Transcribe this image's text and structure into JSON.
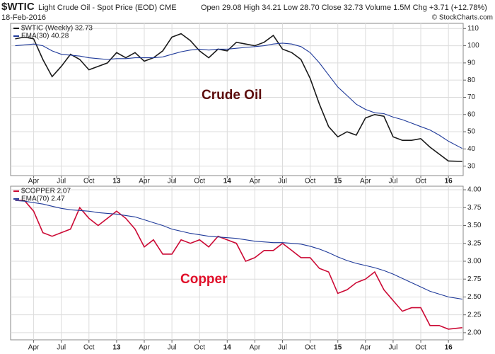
{
  "chart_data": [
    {
      "type": "line",
      "title": "$WTIC",
      "subtitle": "Light Crude Oil - Spot Price (EOD) CME",
      "date": "18-Feb-2016",
      "quote": "Open 29.08 High 34.21 Low 28.70 Close 32.73 Volume 1.5M Chg +3.71 (+12.78%)",
      "credit": "© StockCharts.com",
      "annotation": "Crude Oil",
      "annotation_color": "#5c0d0d",
      "legend": "upper left",
      "grid": true,
      "x": [
        1,
        2,
        3,
        4,
        5,
        6,
        7,
        8,
        9,
        10,
        11,
        12,
        13,
        14,
        15,
        16,
        17,
        18,
        19,
        20,
        21,
        22,
        23,
        24,
        25,
        26,
        27,
        28,
        29,
        30,
        31,
        32,
        33,
        34,
        35,
        36,
        37,
        38,
        39,
        40,
        41,
        42,
        43,
        44,
        45,
        46,
        47,
        48,
        49.5
      ],
      "xlim": [
        0.5,
        49.6
      ],
      "xticks": [
        {
          "value": 3,
          "label": "Apr"
        },
        {
          "value": 6,
          "label": "Jul"
        },
        {
          "value": 9,
          "label": "Oct"
        },
        {
          "value": 12,
          "label": "13"
        },
        {
          "value": 15,
          "label": "Apr"
        },
        {
          "value": 18,
          "label": "Jul"
        },
        {
          "value": 21,
          "label": "Oct"
        },
        {
          "value": 24,
          "label": "14"
        },
        {
          "value": 27,
          "label": "Apr"
        },
        {
          "value": 30,
          "label": "Jul"
        },
        {
          "value": 33,
          "label": "Oct"
        },
        {
          "value": 36,
          "label": "15"
        },
        {
          "value": 39,
          "label": "Apr"
        },
        {
          "value": 42,
          "label": "Jul"
        },
        {
          "value": 45,
          "label": "Oct"
        },
        {
          "value": 48,
          "label": "16"
        }
      ],
      "ylim": [
        24.5,
        113
      ],
      "yticks": [
        30,
        40,
        50,
        60,
        70,
        80,
        90,
        100,
        110
      ],
      "series": [
        {
          "name": "$WTIC (Weekly) 32.73",
          "color": "#1a1a1a",
          "values": [
            104,
            105,
            104,
            92,
            82,
            88,
            95,
            92,
            86,
            88,
            90,
            96,
            93,
            96,
            91,
            93,
            97,
            105,
            107,
            103,
            97,
            93,
            98,
            97,
            102,
            101,
            100,
            102,
            106,
            98,
            96,
            92,
            81,
            66,
            53,
            47,
            50,
            48,
            58,
            60,
            59,
            47,
            45,
            45,
            46,
            41,
            37,
            33,
            32.73
          ]
        },
        {
          "name": "EMA(30) 40.28",
          "color": "#1f3a9a",
          "values": [
            100,
            100.5,
            101,
            100,
            97,
            95,
            94.5,
            94,
            93,
            92.5,
            92,
            92.5,
            92.5,
            93,
            93,
            93,
            93.5,
            95,
            96.5,
            97.5,
            98,
            97.5,
            98,
            98,
            98.5,
            99,
            99.5,
            100,
            101,
            101.5,
            101,
            99.5,
            96,
            90,
            83,
            76,
            71,
            66,
            63,
            61,
            60.5,
            58.5,
            57,
            55,
            53,
            51,
            48,
            44.5,
            40.28
          ]
        }
      ]
    },
    {
      "type": "line",
      "annotation": "Copper",
      "annotation_color": "#e0102a",
      "legend": "upper left",
      "grid": true,
      "x": [
        1,
        2,
        3,
        4,
        5,
        6,
        7,
        8,
        9,
        10,
        11,
        12,
        13,
        14,
        15,
        16,
        17,
        18,
        19,
        20,
        21,
        22,
        23,
        24,
        25,
        26,
        27,
        28,
        29,
        30,
        31,
        32,
        33,
        34,
        35,
        36,
        37,
        38,
        39,
        40,
        41,
        42,
        43,
        44,
        45,
        46,
        47,
        48,
        49.5
      ],
      "xlim": [
        0.5,
        49.6
      ],
      "xticks": [
        {
          "value": 3,
          "label": "Apr"
        },
        {
          "value": 6,
          "label": "Jul"
        },
        {
          "value": 9,
          "label": "Oct"
        },
        {
          "value": 12,
          "label": "13"
        },
        {
          "value": 15,
          "label": "Apr"
        },
        {
          "value": 18,
          "label": "Jul"
        },
        {
          "value": 21,
          "label": "Oct"
        },
        {
          "value": 24,
          "label": "14"
        },
        {
          "value": 27,
          "label": "Apr"
        },
        {
          "value": 30,
          "label": "Jul"
        },
        {
          "value": 33,
          "label": "Oct"
        },
        {
          "value": 36,
          "label": "15"
        },
        {
          "value": 39,
          "label": "Apr"
        },
        {
          "value": 42,
          "label": "Jul"
        },
        {
          "value": 45,
          "label": "Oct"
        },
        {
          "value": 48,
          "label": "16"
        }
      ],
      "ylim": [
        1.9,
        4.05
      ],
      "yticks": [
        {
          "value": 2,
          "label": "2.00"
        },
        {
          "value": 2.25,
          "label": "2.25"
        },
        {
          "value": 2.5,
          "label": "2.50"
        },
        {
          "value": 2.75,
          "label": "2.75"
        },
        {
          "value": 3,
          "label": "3.00"
        },
        {
          "value": 3.25,
          "label": "3.25"
        },
        {
          "value": 3.5,
          "label": "3.50"
        },
        {
          "value": 3.75,
          "label": "3.75"
        },
        {
          "value": 4,
          "label": "4.00"
        }
      ],
      "series": [
        {
          "name": "$COPPER 2.07",
          "color": "#cc0a35",
          "values": [
            3.85,
            3.85,
            3.7,
            3.4,
            3.35,
            3.4,
            3.45,
            3.75,
            3.6,
            3.5,
            3.6,
            3.7,
            3.6,
            3.45,
            3.2,
            3.3,
            3.1,
            3.1,
            3.3,
            3.25,
            3.3,
            3.2,
            3.35,
            3.3,
            3.25,
            3.0,
            3.05,
            3.15,
            3.15,
            3.25,
            3.15,
            3.05,
            3.05,
            2.9,
            2.85,
            2.55,
            2.6,
            2.7,
            2.75,
            2.85,
            2.6,
            2.45,
            2.3,
            2.35,
            2.35,
            2.1,
            2.1,
            2.05,
            2.07
          ]
        },
        {
          "name": "EMA(70) 2.47",
          "color": "#1f3a9a",
          "values": [
            3.85,
            3.84,
            3.82,
            3.8,
            3.77,
            3.74,
            3.72,
            3.71,
            3.7,
            3.68,
            3.67,
            3.66,
            3.64,
            3.62,
            3.58,
            3.54,
            3.5,
            3.45,
            3.42,
            3.39,
            3.37,
            3.35,
            3.34,
            3.33,
            3.32,
            3.3,
            3.28,
            3.27,
            3.26,
            3.26,
            3.25,
            3.24,
            3.21,
            3.17,
            3.12,
            3.06,
            3.01,
            2.97,
            2.94,
            2.91,
            2.87,
            2.82,
            2.76,
            2.7,
            2.64,
            2.58,
            2.54,
            2.5,
            2.47
          ]
        }
      ]
    }
  ]
}
